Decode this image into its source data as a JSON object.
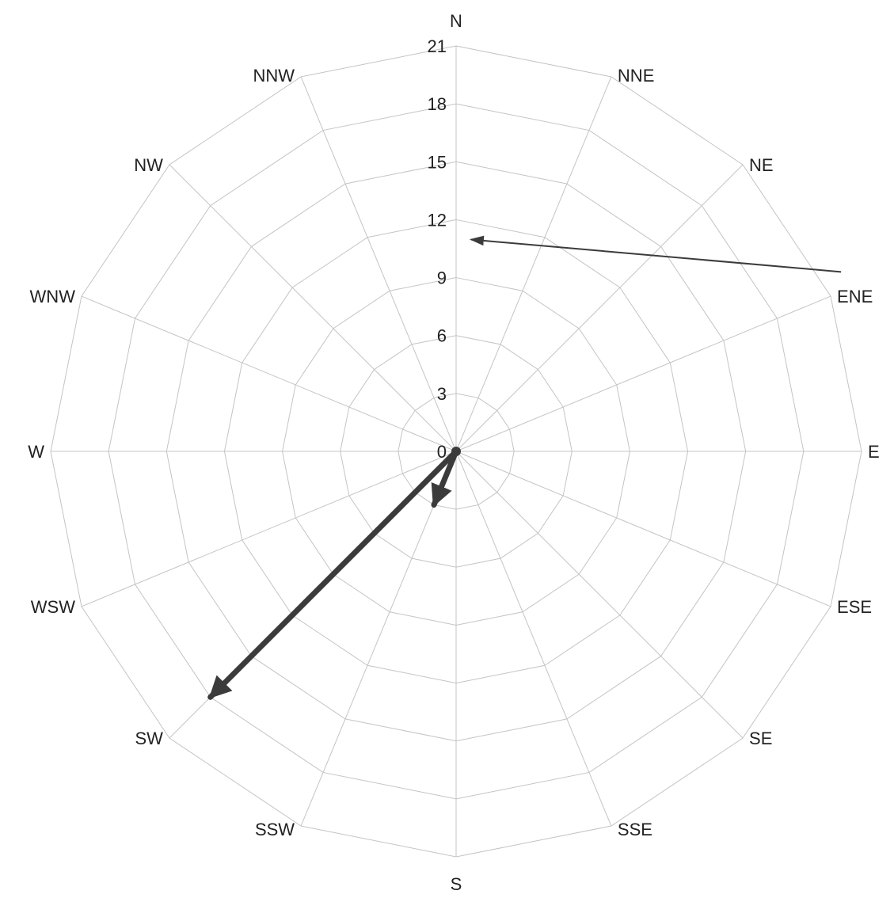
{
  "chart_data": {
    "type": "radar",
    "title": "",
    "directions": [
      "N",
      "NNE",
      "NE",
      "ENE",
      "E",
      "ESE",
      "SE",
      "SSE",
      "S",
      "SSW",
      "SW",
      "WSW",
      "W",
      "WNW",
      "NW",
      "NNW"
    ],
    "radial_ticks": [
      "0",
      "3",
      "6",
      "9",
      "12",
      "15",
      "18",
      "21"
    ],
    "rlim": [
      0,
      21
    ],
    "grid": true,
    "vectors": [
      {
        "from": {
          "r": 0,
          "angle_deg": 0
        },
        "to": {
          "r": 18,
          "angle_deg": 225
        },
        "style": "thick",
        "color": "#3b3b3b"
      },
      {
        "from": {
          "r": 0,
          "angle_deg": 0
        },
        "to": {
          "r": 3,
          "angle_deg": 202.5
        },
        "style": "thick",
        "color": "#3b3b3b"
      }
    ],
    "annotation_arrow": {
      "color": "#3b3b3b",
      "from": {
        "r": 22,
        "angle_deg": 65
      },
      "to": {
        "r": 11,
        "angle_deg": 4
      }
    }
  },
  "colors": {
    "grid": "#c4c4c4",
    "text": "#222222",
    "vector": "#3b3b3b"
  }
}
